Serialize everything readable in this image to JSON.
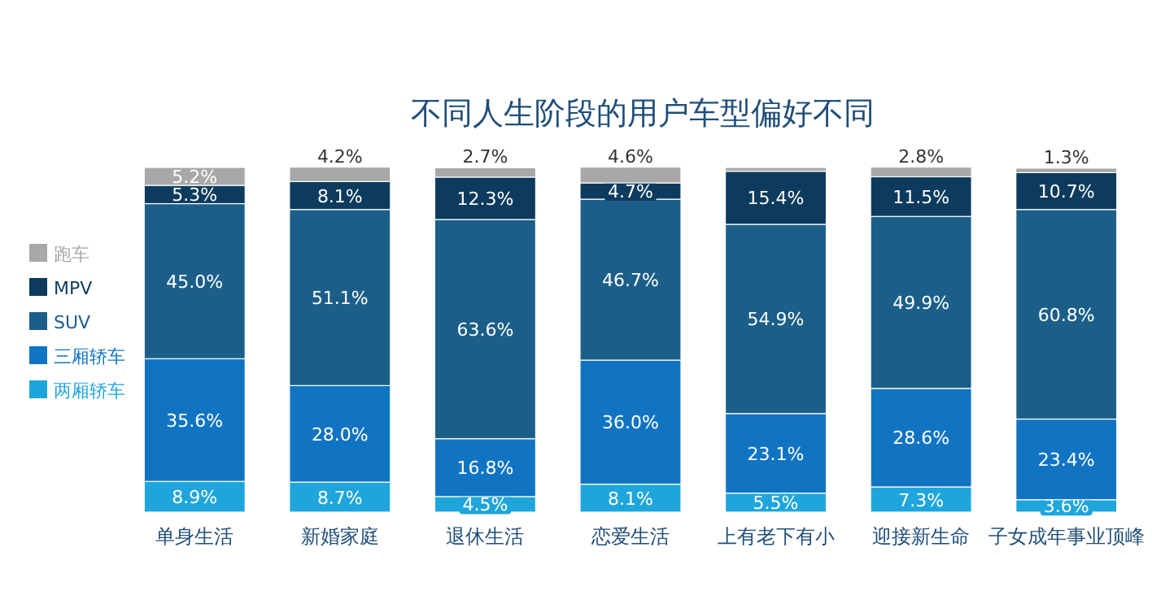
{
  "chart_data": {
    "type": "bar",
    "stacked": true,
    "title": "不同人生阶段的用户车型偏好不同",
    "categories": [
      "单身生活",
      "新婚家庭",
      "退休生活",
      "恋爱生活",
      "上有老下有小",
      "迎接新生命",
      "子女成年事业顶峰"
    ],
    "ylim": [
      0,
      100
    ],
    "tick_labels": "x",
    "legend": "left",
    "grid": false,
    "series": [
      {
        "name": "两厢轿车",
        "color": "#1ea6dc",
        "values": [
          8.9,
          8.7,
          4.5,
          8.1,
          5.5,
          7.3,
          3.6
        ],
        "value_labels": [
          "8.9%",
          "8.7%",
          "4.5%",
          "8.1%",
          "5.5%",
          "7.3%",
          "3.6%"
        ]
      },
      {
        "name": "三厢轿车",
        "color": "#1174c2",
        "values": [
          35.6,
          28.0,
          16.8,
          36.0,
          23.1,
          28.6,
          23.4
        ],
        "value_labels": [
          "35.6%",
          "28.0%",
          "16.8%",
          "36.0%",
          "23.1%",
          "28.6%",
          "23.4%"
        ]
      },
      {
        "name": "SUV",
        "color": "#1b5f89",
        "values": [
          45.0,
          51.1,
          63.6,
          46.7,
          54.9,
          49.9,
          60.8
        ],
        "value_labels": [
          "45.0%",
          "51.1%",
          "63.6%",
          "46.7%",
          "54.9%",
          "49.9%",
          "60.8%"
        ]
      },
      {
        "name": "MPV",
        "color": "#0c3b5d",
        "values": [
          5.3,
          8.1,
          12.3,
          4.7,
          15.4,
          11.5,
          10.7
        ],
        "value_labels": [
          "5.3%",
          "8.1%",
          "12.3%",
          "4.7%",
          "15.4%",
          "11.5%",
          "10.7%"
        ]
      },
      {
        "name": "跑车",
        "color": "#a8a8a8",
        "values": [
          5.2,
          4.2,
          2.7,
          4.6,
          1.1,
          2.8,
          1.3
        ],
        "value_labels": [
          "5.2%",
          "4.2%",
          "2.7%",
          "4.6%",
          null,
          "2.8%",
          "1.3%"
        ]
      }
    ]
  }
}
